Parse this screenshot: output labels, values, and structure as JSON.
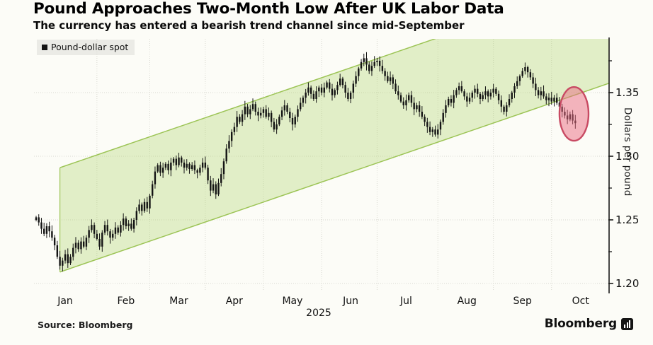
{
  "header": {
    "title": "Pound Approaches Two-Month Low After UK Labor Data",
    "subtitle": "The currency has entered a bearish trend channel since mid-September"
  },
  "legend": {
    "label": "Pound-dollar spot",
    "swatch_color": "#141414"
  },
  "source": {
    "label": "Source: Bloomberg"
  },
  "branding": {
    "wordmark": "Bloomberg"
  },
  "chart_data": {
    "type": "candlestick",
    "title": "Pound Approaches Two-Month Low After UK Labor Data",
    "ylabel": "Dollars per pound",
    "legend_label": "Pound-dollar spot",
    "x_axis": {
      "months": [
        "Jan",
        "Feb",
        "Mar",
        "Apr",
        "May",
        "Jun",
        "Jul",
        "Aug",
        "Sep",
        "Oct"
      ],
      "year_label": "2025",
      "trading_days_per_month": [
        23,
        20,
        21,
        22,
        22,
        21,
        23,
        21,
        22,
        10
      ]
    },
    "y_axis": {
      "ticks": [
        1.2,
        1.25,
        1.3,
        1.35
      ],
      "minor_ticks": [
        1.225,
        1.275,
        1.325,
        1.375
      ],
      "range": [
        1.193,
        1.392
      ],
      "grid": true
    },
    "series_name": "Pound-dollar spot",
    "open_first": 1.25,
    "closes": [
      1.252,
      1.248,
      1.243,
      1.239,
      1.245,
      1.241,
      1.236,
      1.23,
      1.221,
      1.214,
      1.218,
      1.223,
      1.216,
      1.221,
      1.228,
      1.232,
      1.227,
      1.233,
      1.229,
      1.236,
      1.242,
      1.246,
      1.239,
      1.235,
      1.229,
      1.24,
      1.246,
      1.241,
      1.236,
      1.239,
      1.244,
      1.24,
      1.246,
      1.251,
      1.245,
      1.247,
      1.243,
      1.25,
      1.257,
      1.262,
      1.257,
      1.264,
      1.259,
      1.269,
      1.278,
      1.288,
      1.293,
      1.287,
      1.291,
      1.294,
      1.289,
      1.295,
      1.298,
      1.293,
      1.299,
      1.295,
      1.291,
      1.294,
      1.29,
      1.293,
      1.289,
      1.287,
      1.291,
      1.295,
      1.291,
      1.281,
      1.273,
      1.278,
      1.27,
      1.279,
      1.286,
      1.296,
      1.306,
      1.312,
      1.319,
      1.323,
      1.331,
      1.327,
      1.333,
      1.339,
      1.333,
      1.337,
      1.341,
      1.335,
      1.332,
      1.334,
      1.337,
      1.331,
      1.334,
      1.327,
      1.321,
      1.325,
      1.331,
      1.336,
      1.34,
      1.335,
      1.33,
      1.325,
      1.331,
      1.337,
      1.342,
      1.346,
      1.35,
      1.354,
      1.349,
      1.345,
      1.351,
      1.354,
      1.35,
      1.354,
      1.358,
      1.353,
      1.348,
      1.352,
      1.356,
      1.361,
      1.356,
      1.35,
      1.345,
      1.35,
      1.357,
      1.363,
      1.369,
      1.374,
      1.377,
      1.372,
      1.367,
      1.371,
      1.374,
      1.375,
      1.371,
      1.367,
      1.363,
      1.359,
      1.362,
      1.357,
      1.351,
      1.348,
      1.343,
      1.34,
      1.344,
      1.348,
      1.342,
      1.337,
      1.34,
      1.335,
      1.331,
      1.327,
      1.323,
      1.319,
      1.321,
      1.317,
      1.321,
      1.327,
      1.334,
      1.34,
      1.345,
      1.342,
      1.348,
      1.352,
      1.355,
      1.351,
      1.347,
      1.343,
      1.346,
      1.35,
      1.353,
      1.349,
      1.345,
      1.348,
      1.351,
      1.347,
      1.35,
      1.353,
      1.349,
      1.344,
      1.339,
      1.335,
      1.34,
      1.345,
      1.35,
      1.355,
      1.359,
      1.363,
      1.367,
      1.37,
      1.366,
      1.362,
      1.357,
      1.352,
      1.348,
      1.351,
      1.347,
      1.344,
      1.346,
      1.343,
      1.346,
      1.342,
      1.339,
      1.335,
      1.332,
      1.329,
      1.333,
      1.328,
      1.326
    ],
    "trend_channel": {
      "anchor_day_index": 9,
      "anchor_value": 1.209,
      "slope_per_day": 0.000714,
      "width_value": 0.082,
      "fill_color": "rgba(176,212,110,0.35)",
      "line_color": "#9cc455"
    },
    "highlight_ellipse": {
      "center_day_index": 203.5,
      "center_value": 1.3333,
      "rx_days": 5.5,
      "ry_value": 0.0211,
      "fill_color": "rgba(233,105,130,0.50)",
      "stroke_color": "#c84a63"
    },
    "candle_color": "#141414",
    "grid_color": "#d9d9d2",
    "axis_color": "#1a1a1a"
  }
}
